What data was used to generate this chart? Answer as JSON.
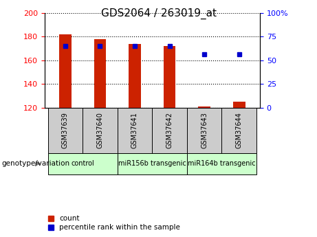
{
  "title": "GDS2064 / 263019_at",
  "samples": [
    "GSM37639",
    "GSM37640",
    "GSM37641",
    "GSM37642",
    "GSM37643",
    "GSM37644"
  ],
  "bar_base": 120,
  "bar_tops": [
    182,
    178,
    174,
    172,
    121,
    125
  ],
  "percentile_values": [
    172,
    172,
    172,
    172,
    165,
    165
  ],
  "left_ylim": [
    120,
    200
  ],
  "right_ylim": [
    0,
    100
  ],
  "left_yticks": [
    120,
    140,
    160,
    180,
    200
  ],
  "right_yticks": [
    0,
    25,
    50,
    75,
    100
  ],
  "right_yticklabels": [
    "0",
    "25",
    "50",
    "75",
    "100%"
  ],
  "bar_color": "#cc2200",
  "dot_color": "#0000cc",
  "groups": [
    {
      "label": "control",
      "start": 0,
      "end": 1
    },
    {
      "label": "miR156b transgenic",
      "start": 2,
      "end": 3
    },
    {
      "label": "miR164b transgenic",
      "start": 4,
      "end": 5
    }
  ],
  "group_label": "genotype/variation",
  "legend_count_label": "count",
  "legend_percentile_label": "percentile rank within the sample",
  "sample_box_color": "#cccccc",
  "group_box_color": "#ccffcc",
  "figsize": [
    4.61,
    3.45
  ],
  "dpi": 100
}
